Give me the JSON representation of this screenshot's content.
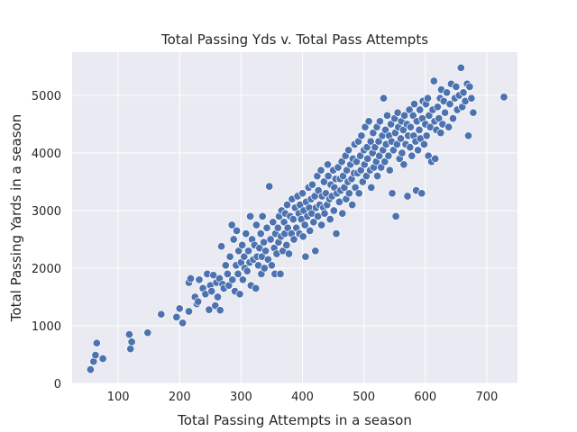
{
  "chart_data": {
    "type": "scatter",
    "title": "Total Passing Yds v. Total Pass Attempts",
    "xlabel": "Total Passing Attempts in a season",
    "ylabel": "Total Passing Yards in a season",
    "xlim": [
      25,
      750
    ],
    "ylim": [
      0,
      5750
    ],
    "xticks": [
      100,
      200,
      300,
      400,
      500,
      600,
      700
    ],
    "yticks": [
      0,
      1000,
      2000,
      3000,
      4000,
      5000
    ],
    "grid": true,
    "colors": {
      "background": "#eaeaf2",
      "grid": "#ffffff",
      "marker": "#4c72b0",
      "marker_edge": "#ffffff"
    },
    "points": [
      [
        55,
        240
      ],
      [
        60,
        380
      ],
      [
        63,
        490
      ],
      [
        65,
        700
      ],
      [
        75,
        430
      ],
      [
        118,
        850
      ],
      [
        120,
        600
      ],
      [
        122,
        720
      ],
      [
        148,
        880
      ],
      [
        170,
        1200
      ],
      [
        195,
        1150
      ],
      [
        200,
        1300
      ],
      [
        205,
        1050
      ],
      [
        215,
        1250
      ],
      [
        215,
        1750
      ],
      [
        218,
        1820
      ],
      [
        225,
        1500
      ],
      [
        228,
        1380
      ],
      [
        230,
        1420
      ],
      [
        232,
        1800
      ],
      [
        238,
        1650
      ],
      [
        242,
        1550
      ],
      [
        245,
        1900
      ],
      [
        248,
        1280
      ],
      [
        250,
        1700
      ],
      [
        252,
        1600
      ],
      [
        255,
        1880
      ],
      [
        258,
        1350
      ],
      [
        260,
        1750
      ],
      [
        262,
        1500
      ],
      [
        265,
        1820
      ],
      [
        266,
        1270
      ],
      [
        268,
        2380
      ],
      [
        270,
        1720
      ],
      [
        272,
        1650
      ],
      [
        275,
        2050
      ],
      [
        278,
        1900
      ],
      [
        280,
        1700
      ],
      [
        282,
        2200
      ],
      [
        285,
        2750
      ],
      [
        286,
        1800
      ],
      [
        288,
        2500
      ],
      [
        290,
        1600
      ],
      [
        292,
        2050
      ],
      [
        293,
        2650
      ],
      [
        295,
        1900
      ],
      [
        296,
        2300
      ],
      [
        298,
        1550
      ],
      [
        300,
        2100
      ],
      [
        302,
        2400
      ],
      [
        303,
        1800
      ],
      [
        305,
        2200
      ],
      [
        306,
        2000
      ],
      [
        308,
        2600
      ],
      [
        310,
        1950
      ],
      [
        312,
        2300
      ],
      [
        314,
        2100
      ],
      [
        315,
        2900
      ],
      [
        316,
        1700
      ],
      [
        318,
        2500
      ],
      [
        320,
        2150
      ],
      [
        322,
        2400
      ],
      [
        324,
        1650
      ],
      [
        325,
        2750
      ],
      [
        326,
        2200
      ],
      [
        328,
        2050
      ],
      [
        330,
        2350
      ],
      [
        332,
        2600
      ],
      [
        333,
        1900
      ],
      [
        334,
        2200
      ],
      [
        335,
        2900
      ],
      [
        337,
        2450
      ],
      [
        338,
        2000
      ],
      [
        340,
        2300
      ],
      [
        342,
        2700
      ],
      [
        344,
        2150
      ],
      [
        346,
        3420
      ],
      [
        348,
        2500
      ],
      [
        350,
        2050
      ],
      [
        352,
        2800
      ],
      [
        354,
        2350
      ],
      [
        355,
        1900
      ],
      [
        356,
        2600
      ],
      [
        358,
        2250
      ],
      [
        360,
        2700
      ],
      [
        361,
        2450
      ],
      [
        362,
        2900
      ],
      [
        364,
        1900
      ],
      [
        365,
        2550
      ],
      [
        366,
        3000
      ],
      [
        368,
        2300
      ],
      [
        370,
        2800
      ],
      [
        371,
        2600
      ],
      [
        372,
        2950
      ],
      [
        374,
        2400
      ],
      [
        375,
        3100
      ],
      [
        376,
        2700
      ],
      [
        378,
        2250
      ],
      [
        380,
        2900
      ],
      [
        382,
        2600
      ],
      [
        383,
        3200
      ],
      [
        385,
        2850
      ],
      [
        386,
        2500
      ],
      [
        388,
        3050
      ],
      [
        390,
        2700
      ],
      [
        392,
        3250
      ],
      [
        394,
        2950
      ],
      [
        395,
        2600
      ],
      [
        396,
        3100
      ],
      [
        398,
        2850
      ],
      [
        400,
        3300
      ],
      [
        401,
        2550
      ],
      [
        402,
        3000
      ],
      [
        404,
        2750
      ],
      [
        405,
        2200
      ],
      [
        406,
        3150
      ],
      [
        408,
        2900
      ],
      [
        410,
        3400
      ],
      [
        411,
        3050
      ],
      [
        412,
        2650
      ],
      [
        414,
        3200
      ],
      [
        415,
        2950
      ],
      [
        416,
        3450
      ],
      [
        418,
        2800
      ],
      [
        420,
        3250
      ],
      [
        421,
        2300
      ],
      [
        422,
        3050
      ],
      [
        424,
        3600
      ],
      [
        425,
        2900
      ],
      [
        426,
        3350
      ],
      [
        428,
        3100
      ],
      [
        430,
        3700
      ],
      [
        431,
        2750
      ],
      [
        432,
        3250
      ],
      [
        434,
        3050
      ],
      [
        435,
        3500
      ],
      [
        436,
        2950
      ],
      [
        438,
        3300
      ],
      [
        440,
        3100
      ],
      [
        441,
        3800
      ],
      [
        442,
        3600
      ],
      [
        444,
        3200
      ],
      [
        445,
        2850
      ],
      [
        446,
        3450
      ],
      [
        448,
        3250
      ],
      [
        450,
        3700
      ],
      [
        451,
        3000
      ],
      [
        452,
        3400
      ],
      [
        454,
        3550
      ],
      [
        455,
        2600
      ],
      [
        456,
        3300
      ],
      [
        458,
        3750
      ],
      [
        460,
        3150
      ],
      [
        461,
        3550
      ],
      [
        462,
        3350
      ],
      [
        464,
        3850
      ],
      [
        465,
        2950
      ],
      [
        466,
        3600
      ],
      [
        468,
        3400
      ],
      [
        470,
        3950
      ],
      [
        471,
        3200
      ],
      [
        472,
        3700
      ],
      [
        474,
        3500
      ],
      [
        475,
        4050
      ],
      [
        476,
        3300
      ],
      [
        478,
        3800
      ],
      [
        480,
        3550
      ],
      [
        481,
        3100
      ],
      [
        482,
        3900
      ],
      [
        484,
        3650
      ],
      [
        485,
        4150
      ],
      [
        486,
        3400
      ],
      [
        488,
        3850
      ],
      [
        490,
        3650
      ],
      [
        491,
        4200
      ],
      [
        492,
        3300
      ],
      [
        494,
        3950
      ],
      [
        495,
        3700
      ],
      [
        496,
        4300
      ],
      [
        498,
        3500
      ],
      [
        500,
        4050
      ],
      [
        501,
        3800
      ],
      [
        502,
        4450
      ],
      [
        504,
        3600
      ],
      [
        505,
        4100
      ],
      [
        506,
        3900
      ],
      [
        508,
        4550
      ],
      [
        510,
        3700
      ],
      [
        511,
        4200
      ],
      [
        512,
        3400
      ],
      [
        514,
        4000
      ],
      [
        515,
        4350
      ],
      [
        516,
        3750
      ],
      [
        518,
        4100
      ],
      [
        520,
        3850
      ],
      [
        521,
        4450
      ],
      [
        522,
        3600
      ],
      [
        524,
        4200
      ],
      [
        525,
        3950
      ],
      [
        526,
        4550
      ],
      [
        528,
        3750
      ],
      [
        530,
        4300
      ],
      [
        531,
        4050
      ],
      [
        532,
        4950
      ],
      [
        534,
        3850
      ],
      [
        535,
        4400
      ],
      [
        536,
        4150
      ],
      [
        538,
        4650
      ],
      [
        540,
        3950
      ],
      [
        541,
        4300
      ],
      [
        542,
        3700
      ],
      [
        544,
        4500
      ],
      [
        545,
        4200
      ],
      [
        546,
        3300
      ],
      [
        548,
        4050
      ],
      [
        550,
        4600
      ],
      [
        551,
        4350
      ],
      [
        552,
        2900
      ],
      [
        554,
        4150
      ],
      [
        555,
        4700
      ],
      [
        556,
        4450
      ],
      [
        558,
        3900
      ],
      [
        560,
        4250
      ],
      [
        561,
        4550
      ],
      [
        562,
        4000
      ],
      [
        564,
        4400
      ],
      [
        565,
        3800
      ],
      [
        566,
        4650
      ],
      [
        568,
        4150
      ],
      [
        570,
        4500
      ],
      [
        571,
        3250
      ],
      [
        572,
        4300
      ],
      [
        574,
        4750
      ],
      [
        575,
        4100
      ],
      [
        576,
        4450
      ],
      [
        578,
        3950
      ],
      [
        580,
        4650
      ],
      [
        581,
        4300
      ],
      [
        582,
        4850
      ],
      [
        584,
        4200
      ],
      [
        585,
        3350
      ],
      [
        586,
        4550
      ],
      [
        588,
        4050
      ],
      [
        590,
        4400
      ],
      [
        591,
        4750
      ],
      [
        592,
        4250
      ],
      [
        594,
        3300
      ],
      [
        595,
        4600
      ],
      [
        596,
        4900
      ],
      [
        598,
        4150
      ],
      [
        600,
        4500
      ],
      [
        601,
        4850
      ],
      [
        602,
        4300
      ],
      [
        604,
        4950
      ],
      [
        605,
        3950
      ],
      [
        606,
        4650
      ],
      [
        608,
        4450
      ],
      [
        610,
        3850
      ],
      [
        612,
        4750
      ],
      [
        614,
        5250
      ],
      [
        615,
        4550
      ],
      [
        616,
        3900
      ],
      [
        618,
        4400
      ],
      [
        620,
        4800
      ],
      [
        622,
        4600
      ],
      [
        624,
        4950
      ],
      [
        625,
        4350
      ],
      [
        626,
        5100
      ],
      [
        628,
        4500
      ],
      [
        630,
        4900
      ],
      [
        632,
        4700
      ],
      [
        635,
        5050
      ],
      [
        638,
        4450
      ],
      [
        640,
        4850
      ],
      [
        642,
        5200
      ],
      [
        645,
        4600
      ],
      [
        648,
        4950
      ],
      [
        650,
        5150
      ],
      [
        652,
        4750
      ],
      [
        655,
        5000
      ],
      [
        658,
        5480
      ],
      [
        660,
        4800
      ],
      [
        662,
        5050
      ],
      [
        665,
        4900
      ],
      [
        668,
        5200
      ],
      [
        670,
        4300
      ],
      [
        672,
        5150
      ],
      [
        675,
        4950
      ],
      [
        678,
        4700
      ],
      [
        728,
        4970
      ]
    ]
  }
}
